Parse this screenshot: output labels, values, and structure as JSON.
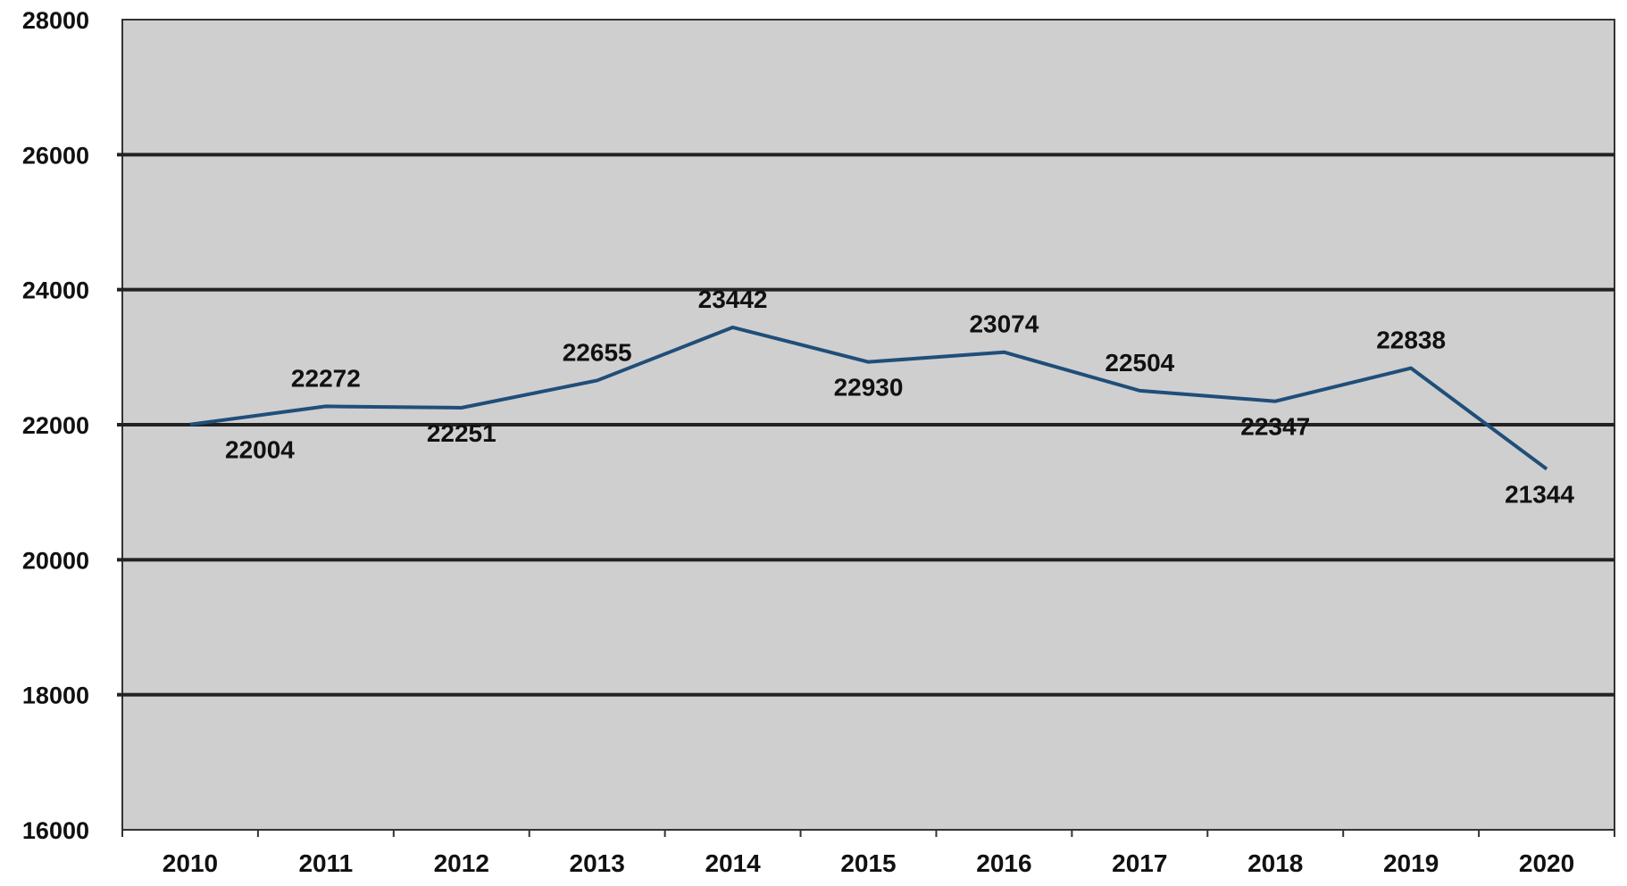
{
  "chart_data": {
    "type": "line",
    "title": "",
    "xlabel": "",
    "ylabel": "",
    "categories": [
      "2010",
      "2011",
      "2012",
      "2013",
      "2014",
      "2015",
      "2016",
      "2017",
      "2018",
      "2019",
      "2020"
    ],
    "series": [
      {
        "values": [
          22004,
          22272,
          22251,
          22655,
          23442,
          22930,
          23074,
          22504,
          22347,
          22838,
          21344
        ],
        "data_labels": [
          "22004",
          "22272",
          "22251",
          "22655",
          "23442",
          "22930",
          "23074",
          "22504",
          "22347",
          "22838",
          "21344"
        ]
      }
    ],
    "y_ticks": [
      "16000",
      "18000",
      "20000",
      "22000",
      "24000",
      "26000",
      "28000"
    ],
    "ylim": [
      16000,
      28000
    ],
    "grid": true,
    "legend": "none",
    "colors": {
      "line": "#1f4e79",
      "plot_background": "#cfcfcf",
      "gridline": "#222222"
    }
  }
}
